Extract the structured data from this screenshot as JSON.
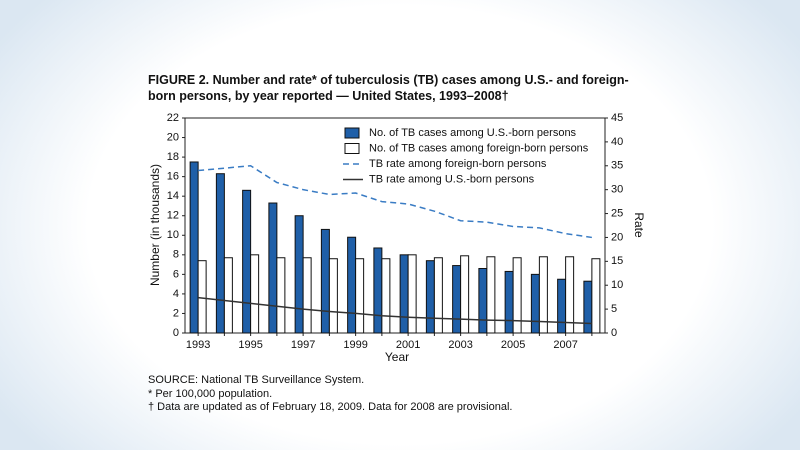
{
  "chart_data": {
    "type": "bar",
    "title": "FIGURE 2. Number and rate* of tuberculosis (TB) cases among U.S.- and foreign-born persons, by year reported — United States, 1993–2008†",
    "x_label": "Year",
    "y_label": "Number (in thousands)",
    "y2_label": "Rate",
    "categories": [
      "1993",
      null,
      "1995",
      null,
      "1997",
      null,
      "1999",
      null,
      "2001",
      null,
      "2003",
      null,
      "2005",
      null,
      "2007",
      null
    ],
    "series": [
      {
        "name": "No. of TB cases among U.S.-born persons",
        "type": "bar",
        "color": "#1f5fa8",
        "values": [
          17.5,
          16.3,
          14.6,
          13.3,
          12.0,
          10.6,
          9.8,
          8.7,
          8.0,
          7.4,
          6.9,
          6.6,
          6.3,
          6.0,
          5.5,
          5.3
        ]
      },
      {
        "name": "No. of TB cases among foreign-born persons",
        "type": "bar",
        "color": "#ffffff",
        "values": [
          7.4,
          7.7,
          8.0,
          7.7,
          7.7,
          7.6,
          7.6,
          7.6,
          8.0,
          7.7,
          7.9,
          7.8,
          7.7,
          7.8,
          7.8,
          7.6
        ]
      },
      {
        "name": "TB rate among foreign-born persons",
        "type": "line",
        "axis": "y2",
        "dashed": true,
        "color": "#3a7cc4",
        "values": [
          34,
          34.5,
          35,
          31.5,
          30,
          29,
          29.3,
          27.5,
          27,
          25.5,
          23.5,
          23.2,
          22.3,
          22,
          20.8,
          20
        ]
      },
      {
        "name": "TB rate among U.S.-born persons",
        "type": "line",
        "axis": "y2",
        "dashed": false,
        "color": "#333333",
        "values": [
          7.4,
          6.8,
          6.2,
          5.6,
          5.0,
          4.5,
          4.1,
          3.6,
          3.3,
          3.1,
          2.9,
          2.7,
          2.6,
          2.4,
          2.2,
          2.0
        ]
      }
    ],
    "ylim": [
      0,
      22
    ],
    "yticks": [
      0,
      2,
      4,
      6,
      8,
      10,
      12,
      14,
      16,
      18,
      20,
      22
    ],
    "y2lim": [
      0,
      45
    ],
    "y2ticks": [
      0,
      5,
      10,
      15,
      20,
      25,
      30,
      35,
      40,
      45
    ],
    "legend": "upper right",
    "notes": [
      "SOURCE: National TB Surveillance System.",
      "* Per 100,000 population.",
      "† Data are updated as of February 18, 2009. Data for 2008 are provisional."
    ]
  }
}
